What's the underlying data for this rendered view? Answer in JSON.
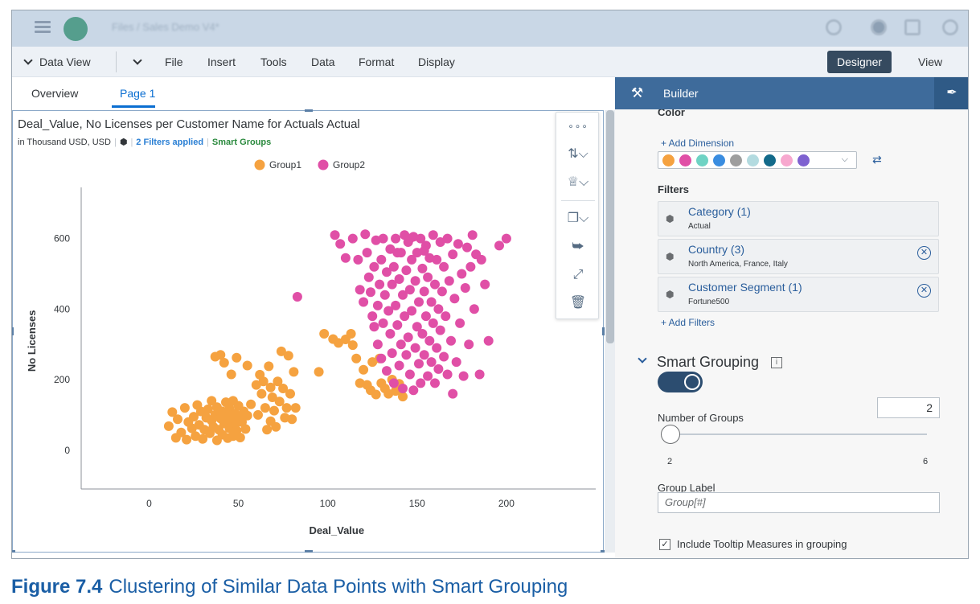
{
  "shell": {
    "breadcrumb": "Files / Sales Demo V4*"
  },
  "toolbar": {
    "data_view": "Data View",
    "menus": [
      "File",
      "Insert",
      "Tools",
      "Data",
      "Format",
      "Display"
    ],
    "designer": "Designer",
    "view": "View"
  },
  "tabs": [
    "Overview",
    "Page 1"
  ],
  "chart": {
    "title": "Deal_Value, No Licenses per Customer Name for Actuals Actual",
    "subtitle_units": "in Thousand USD, USD",
    "filters_applied": "2 Filters applied",
    "smart_groups": "Smart Groups"
  },
  "builder": {
    "title": "Builder",
    "color_label": "Color",
    "add_dimension": "+ Add Dimension",
    "filters_label": "Filters",
    "filters": [
      {
        "name": "Category (1)",
        "value": "Actual",
        "removable": false
      },
      {
        "name": "Country (3)",
        "value": "North America, France, Italy",
        "removable": true
      },
      {
        "name": "Customer Segment (1)",
        "value": "Fortune500",
        "removable": true
      }
    ],
    "add_filters": "+ Add Filters",
    "smart_grouping": "Smart Grouping",
    "number_of_groups_label": "Number of Groups",
    "number_of_groups": "2",
    "slider_min": "2",
    "slider_max": "6",
    "group_label_label": "Group Label",
    "group_label_placeholder": "Group[#]",
    "include_tooltip": "Include Tooltip Measures in grouping"
  },
  "colors": {
    "group1": "#f5a240",
    "group2": "#e04fa6",
    "palette": [
      "#f5a240",
      "#e04fa6",
      "#6fd3c4",
      "#3a8de0",
      "#9e9e9e",
      "#b3dbe0",
      "#136a8a",
      "#f7a8cf",
      "#7e62d0"
    ]
  },
  "caption": {
    "label": "Figure 7.4",
    "text": "Clustering of Similar Data Points with Smart Grouping"
  },
  "chart_data": {
    "type": "scatter",
    "xlabel": "Deal_Value",
    "ylabel": "No Licenses",
    "xlim": [
      -38,
      250
    ],
    "ylim": [
      -110,
      745
    ],
    "x_ticks": [
      0,
      50,
      100,
      150,
      200
    ],
    "y_ticks": [
      0,
      200,
      400,
      600
    ],
    "legend_position": "top",
    "series": [
      {
        "name": "Group1",
        "points": [
          [
            11,
            68
          ],
          [
            13,
            108
          ],
          [
            15,
            35
          ],
          [
            16,
            88
          ],
          [
            18,
            50
          ],
          [
            20,
            120
          ],
          [
            21,
            30
          ],
          [
            22,
            80
          ],
          [
            24,
            62
          ],
          [
            25,
            95
          ],
          [
            26,
            40
          ],
          [
            27,
            128
          ],
          [
            28,
            72
          ],
          [
            29,
            110
          ],
          [
            30,
            32
          ],
          [
            31,
            58
          ],
          [
            32,
            92
          ],
          [
            33,
            116
          ],
          [
            34,
            48
          ],
          [
            35,
            84
          ],
          [
            35,
            140
          ],
          [
            36,
            66
          ],
          [
            37,
            100
          ],
          [
            37,
            265
          ],
          [
            38,
            28
          ],
          [
            38,
            122
          ],
          [
            39,
            58
          ],
          [
            40,
            90
          ],
          [
            40,
            270
          ],
          [
            41,
            44
          ],
          [
            41,
            110
          ],
          [
            42,
            76
          ],
          [
            42,
            248
          ],
          [
            43,
            136
          ],
          [
            44,
            34
          ],
          [
            44,
            96
          ],
          [
            45,
            62
          ],
          [
            45,
            118
          ],
          [
            46,
            84
          ],
          [
            46,
            215
          ],
          [
            47,
            40
          ],
          [
            47,
            140
          ],
          [
            48,
            70
          ],
          [
            48,
            104
          ],
          [
            49,
            56
          ],
          [
            49,
            262
          ],
          [
            50,
            92
          ],
          [
            50,
            126
          ],
          [
            51,
            36
          ],
          [
            52,
            80
          ],
          [
            53,
            110
          ],
          [
            54,
            60
          ],
          [
            55,
            98
          ],
          [
            55,
            240
          ],
          [
            57,
            130
          ],
          [
            60,
            185
          ],
          [
            61,
            100
          ],
          [
            62,
            214
          ],
          [
            63,
            160
          ],
          [
            64,
            195
          ],
          [
            65,
            120
          ],
          [
            66,
            58
          ],
          [
            67,
            238
          ],
          [
            68,
            178
          ],
          [
            68,
            82
          ],
          [
            69,
            150
          ],
          [
            70,
            112
          ],
          [
            71,
            66
          ],
          [
            72,
            195
          ],
          [
            73,
            138
          ],
          [
            74,
            280
          ],
          [
            75,
            175
          ],
          [
            76,
            92
          ],
          [
            77,
            120
          ],
          [
            78,
            268
          ],
          [
            79,
            160
          ],
          [
            80,
            88
          ],
          [
            81,
            222
          ],
          [
            82,
            120
          ],
          [
            95,
            222
          ],
          [
            98,
            330
          ],
          [
            103,
            315
          ],
          [
            106,
            304
          ],
          [
            110,
            314
          ],
          [
            113,
            330
          ],
          [
            114,
            298
          ],
          [
            116,
            260
          ],
          [
            118,
            190
          ],
          [
            120,
            228
          ],
          [
            122,
            185
          ],
          [
            124,
            170
          ],
          [
            125,
            250
          ],
          [
            127,
            158
          ],
          [
            129,
            260
          ],
          [
            130,
            190
          ],
          [
            132,
            175
          ],
          [
            134,
            160
          ],
          [
            136,
            200
          ],
          [
            138,
            168
          ],
          [
            140,
            188
          ],
          [
            142,
            152
          ]
        ]
      },
      {
        "name": "Group2",
        "points": [
          [
            83,
            435
          ],
          [
            107,
            585
          ],
          [
            110,
            545
          ],
          [
            114,
            600
          ],
          [
            117,
            540
          ],
          [
            118,
            455
          ],
          [
            120,
            420
          ],
          [
            121,
            612
          ],
          [
            122,
            560
          ],
          [
            123,
            490
          ],
          [
            124,
            448
          ],
          [
            125,
            380
          ],
          [
            126,
            520
          ],
          [
            126,
            350
          ],
          [
            127,
            595
          ],
          [
            128,
            410
          ],
          [
            128,
            300
          ],
          [
            129,
            470
          ],
          [
            130,
            540
          ],
          [
            130,
            260
          ],
          [
            131,
            600
          ],
          [
            131,
            360
          ],
          [
            132,
            440
          ],
          [
            133,
            505
          ],
          [
            133,
            225
          ],
          [
            134,
            395
          ],
          [
            135,
            570
          ],
          [
            135,
            330
          ],
          [
            136,
            470
          ],
          [
            136,
            275
          ],
          [
            137,
            520
          ],
          [
            137,
            190
          ],
          [
            138,
            600
          ],
          [
            138,
            410
          ],
          [
            139,
            355
          ],
          [
            140,
            485
          ],
          [
            140,
            240
          ],
          [
            141,
            560
          ],
          [
            141,
            300
          ],
          [
            142,
            440
          ],
          [
            142,
            175
          ],
          [
            143,
            610
          ],
          [
            143,
            380
          ],
          [
            144,
            510
          ],
          [
            144,
            270
          ],
          [
            145,
            590
          ],
          [
            145,
            320
          ],
          [
            146,
            455
          ],
          [
            146,
            215
          ],
          [
            147,
            540
          ],
          [
            147,
            395
          ],
          [
            148,
            605
          ],
          [
            148,
            170
          ],
          [
            149,
            480
          ],
          [
            149,
            290
          ],
          [
            150,
            560
          ],
          [
            150,
            350
          ],
          [
            151,
            420
          ],
          [
            151,
            245
          ],
          [
            152,
            600
          ],
          [
            152,
            190
          ],
          [
            153,
            515
          ],
          [
            153,
            330
          ],
          [
            154,
            450
          ],
          [
            154,
            270
          ],
          [
            155,
            580
          ],
          [
            155,
            380
          ],
          [
            156,
            490
          ],
          [
            156,
            210
          ],
          [
            157,
            545
          ],
          [
            157,
            310
          ],
          [
            158,
            420
          ],
          [
            158,
            250
          ],
          [
            159,
            610
          ],
          [
            159,
            360
          ],
          [
            160,
            470
          ],
          [
            160,
            190
          ],
          [
            161,
            540
          ],
          [
            161,
            290
          ],
          [
            162,
            400
          ],
          [
            162,
            230
          ],
          [
            163,
            590
          ],
          [
            163,
            340
          ],
          [
            164,
            450
          ],
          [
            165,
            520
          ],
          [
            165,
            265
          ],
          [
            166,
            380
          ],
          [
            167,
            600
          ],
          [
            167,
            215
          ],
          [
            168,
            480
          ],
          [
            169,
            310
          ],
          [
            170,
            555
          ],
          [
            170,
            160
          ],
          [
            171,
            430
          ],
          [
            172,
            250
          ],
          [
            173,
            585
          ],
          [
            174,
            360
          ],
          [
            175,
            500
          ],
          [
            176,
            210
          ],
          [
            177,
            460
          ],
          [
            178,
            575
          ],
          [
            179,
            300
          ],
          [
            180,
            520
          ],
          [
            181,
            610
          ],
          [
            182,
            400
          ],
          [
            183,
            555
          ],
          [
            185,
            215
          ],
          [
            186,
            540
          ],
          [
            188,
            470
          ],
          [
            190,
            310
          ],
          [
            196,
            580
          ],
          [
            200,
            600
          ],
          [
            104,
            610
          ],
          [
            139,
            560
          ],
          [
            146,
            600
          ],
          [
            154,
            565
          ]
        ]
      }
    ]
  }
}
